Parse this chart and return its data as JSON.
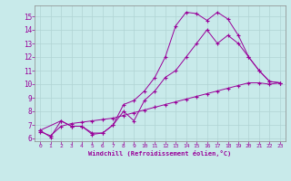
{
  "bg_color": "#c8eaea",
  "line_color": "#990099",
  "grid_color": "#b0d4d4",
  "spine_color": "#888888",
  "xlim": [
    -0.5,
    23.5
  ],
  "ylim": [
    5.8,
    15.8
  ],
  "xticks": [
    0,
    1,
    2,
    3,
    4,
    5,
    6,
    7,
    8,
    9,
    10,
    11,
    12,
    13,
    14,
    15,
    16,
    17,
    18,
    19,
    20,
    21,
    22,
    23
  ],
  "yticks": [
    6,
    7,
    8,
    9,
    10,
    11,
    12,
    13,
    14,
    15
  ],
  "xlabel": "Windchill (Refroidissement éolien,°C)",
  "line1_x": [
    0,
    1,
    2,
    3,
    4,
    5,
    6,
    7,
    8,
    9,
    10,
    11,
    12,
    13,
    14,
    15,
    16,
    17,
    18,
    19,
    20,
    21,
    22,
    23
  ],
  "line1_y": [
    6.6,
    6.1,
    7.3,
    6.9,
    6.9,
    6.4,
    6.4,
    7.0,
    8.5,
    8.8,
    9.5,
    10.5,
    12.0,
    14.3,
    15.3,
    15.2,
    14.7,
    15.3,
    14.8,
    13.6,
    12.0,
    11.0,
    10.2,
    10.1
  ],
  "line2_x": [
    0,
    2,
    3,
    4,
    5,
    6,
    7,
    8,
    9,
    10,
    11,
    12,
    13,
    14,
    15,
    16,
    17,
    18,
    19,
    20,
    21,
    22,
    23
  ],
  "line2_y": [
    6.6,
    7.3,
    6.9,
    6.9,
    6.3,
    6.4,
    7.0,
    8.0,
    7.3,
    8.8,
    9.5,
    10.5,
    11.0,
    12.0,
    13.0,
    14.0,
    13.0,
    13.6,
    13.0,
    12.0,
    11.0,
    10.2,
    10.1
  ],
  "line3_x": [
    0,
    1,
    2,
    3,
    4,
    5,
    6,
    7,
    8,
    9,
    10,
    11,
    12,
    13,
    14,
    15,
    16,
    17,
    18,
    19,
    20,
    21,
    22,
    23
  ],
  "line3_y": [
    6.5,
    6.2,
    6.9,
    7.1,
    7.2,
    7.3,
    7.4,
    7.5,
    7.7,
    7.9,
    8.1,
    8.3,
    8.5,
    8.7,
    8.9,
    9.1,
    9.3,
    9.5,
    9.7,
    9.9,
    10.1,
    10.1,
    10.0,
    10.1
  ]
}
